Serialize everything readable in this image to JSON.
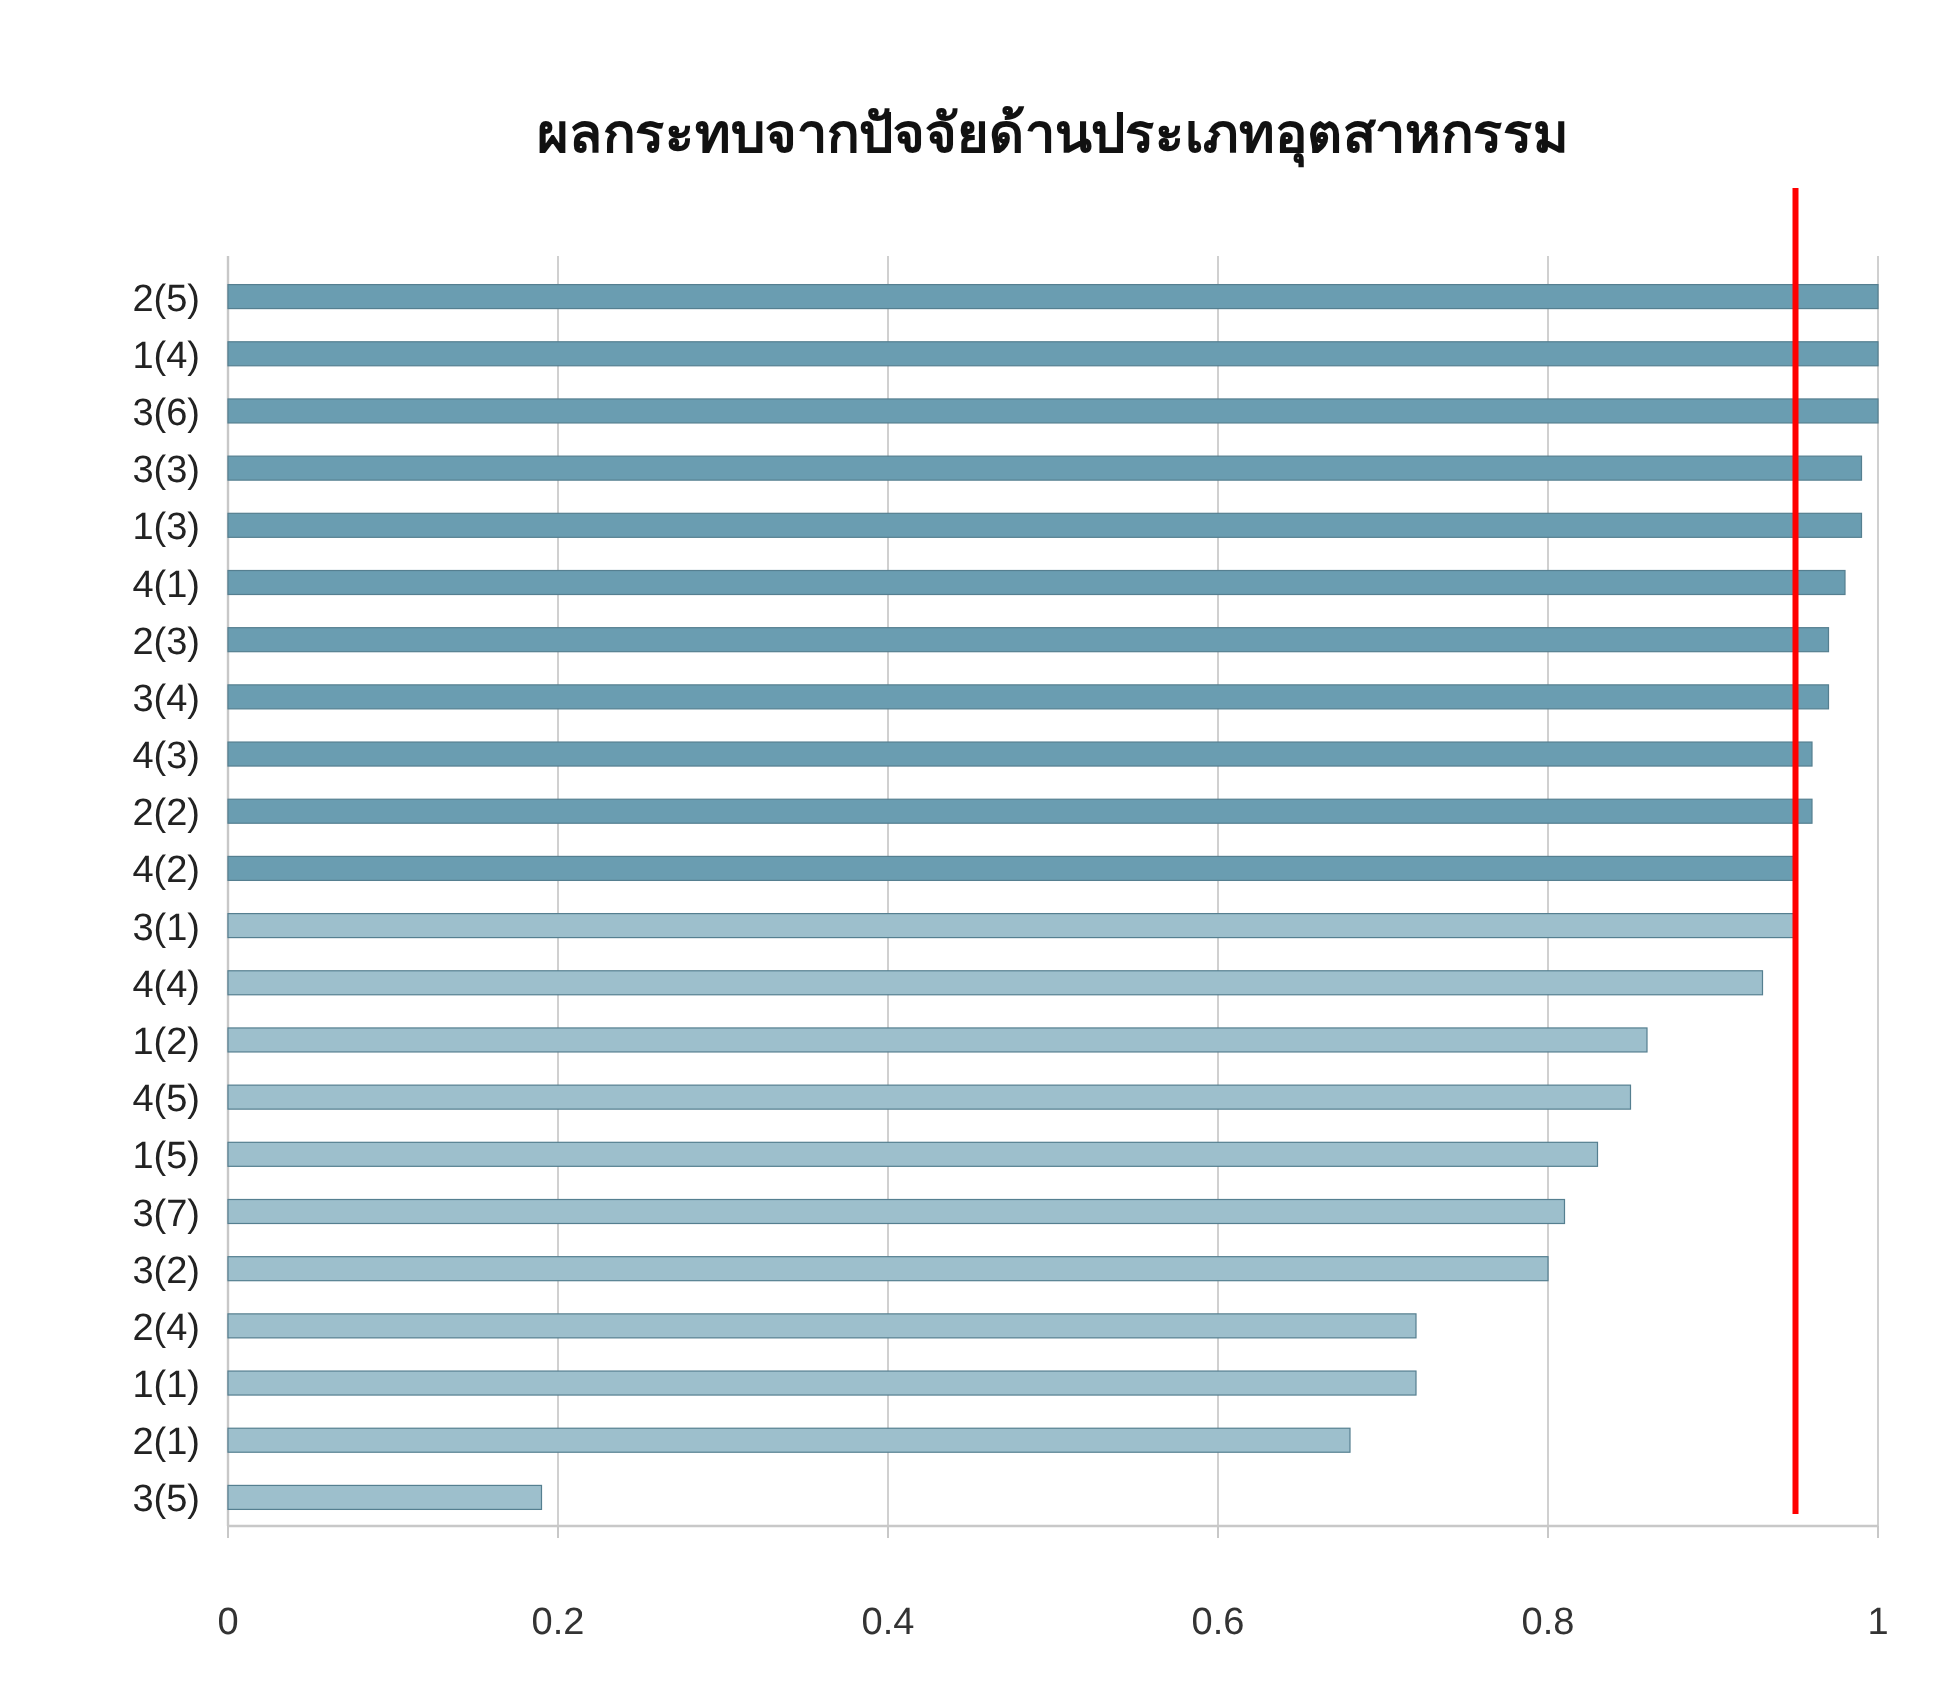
{
  "chart_data": {
    "type": "bar",
    "orientation": "horizontal",
    "title": "ผลกระทบจากปัจจัยด้านประเภทอุตสาหกรรม",
    "categories": [
      "2(5)",
      "1(4)",
      "3(6)",
      "3(3)",
      "1(3)",
      "4(1)",
      "2(3)",
      "3(4)",
      "4(3)",
      "2(2)",
      "4(2)",
      "3(1)",
      "4(4)",
      "1(2)",
      "4(5)",
      "1(5)",
      "3(7)",
      "3(2)",
      "2(4)",
      "1(1)",
      "2(1)",
      "3(5)"
    ],
    "values": [
      1.0,
      1.0,
      1.0,
      0.99,
      0.99,
      0.98,
      0.97,
      0.97,
      0.96,
      0.96,
      0.95,
      0.95,
      0.93,
      0.86,
      0.85,
      0.83,
      0.81,
      0.8,
      0.72,
      0.72,
      0.68,
      0.19
    ],
    "colors": [
      "#6a9db1",
      "#6a9db1",
      "#6a9db1",
      "#6a9db1",
      "#6a9db1",
      "#6a9db1",
      "#6a9db1",
      "#6a9db1",
      "#6a9db1",
      "#6a9db1",
      "#6a9db1",
      "#9dbfcc",
      "#9dbfcc",
      "#9dbfcc",
      "#9dbfcc",
      "#9dbfcc",
      "#9dbfcc",
      "#9dbfcc",
      "#9dbfcc",
      "#9dbfcc",
      "#9dbfcc",
      "#9dbfcc"
    ],
    "xlim": [
      0,
      1
    ],
    "xticks": [
      0,
      0.2,
      0.4,
      0.6,
      0.8,
      1
    ],
    "ref_lines": [
      {
        "axis": "x",
        "value": 0.95,
        "color": "#ff0000"
      }
    ],
    "grid": "x"
  }
}
